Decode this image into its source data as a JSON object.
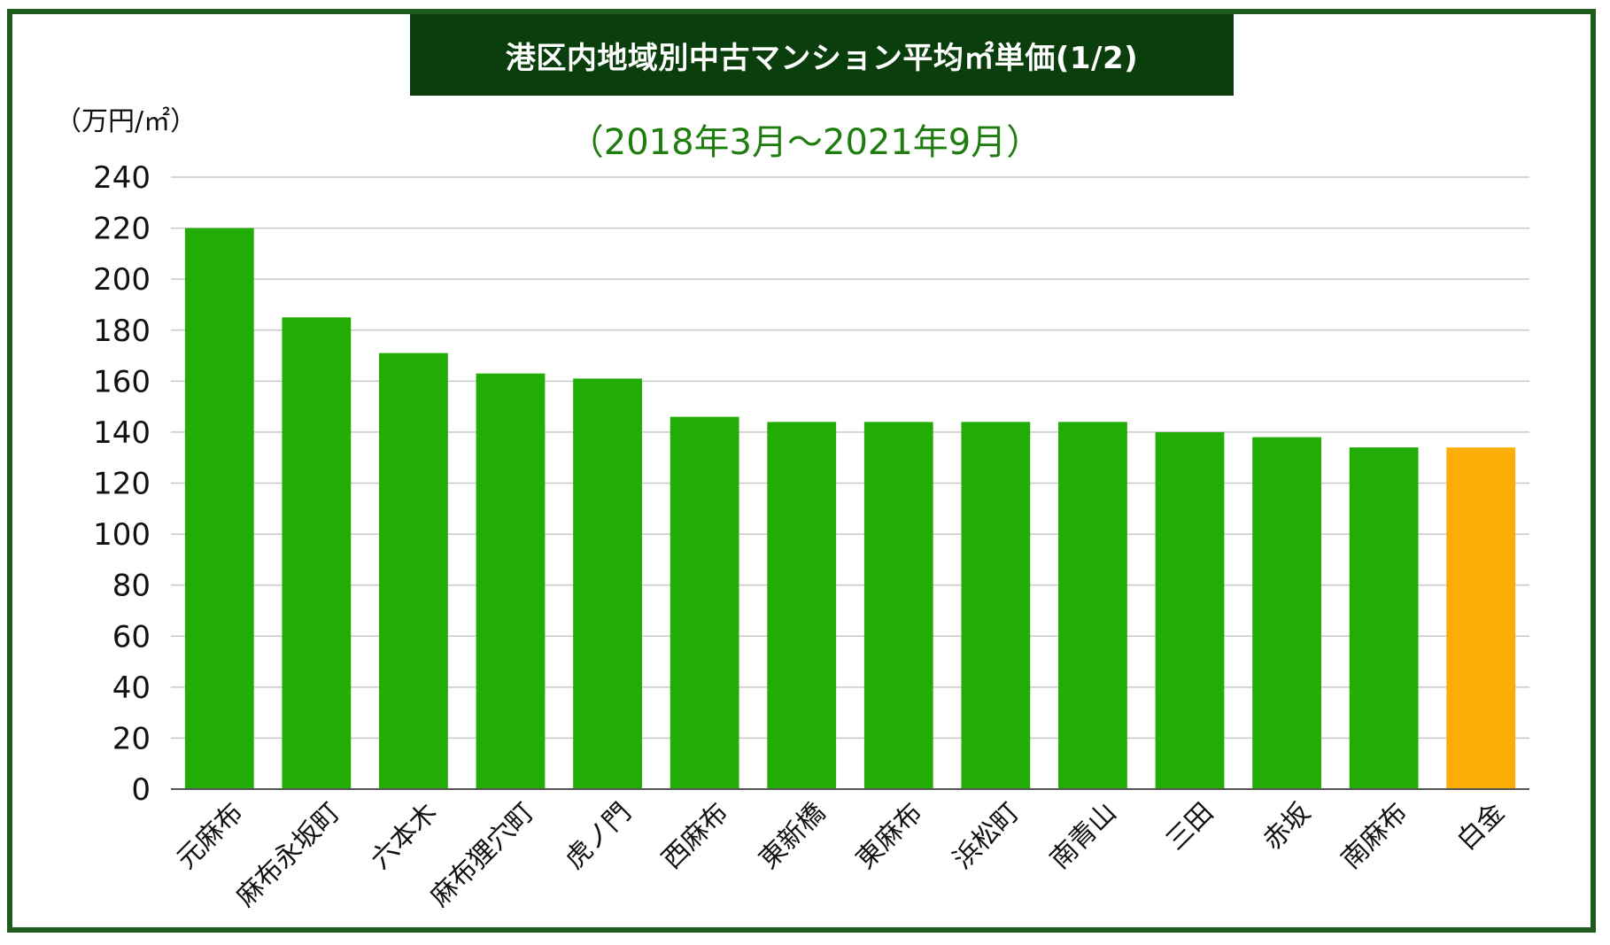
{
  "chart_data": {
    "type": "bar",
    "title": "港区内地域別中古マンション平均㎡単価(1/2)",
    "subtitle": "（2018年3月〜2021年9月）",
    "ylabel": "（万円/㎡）",
    "xlabel": "",
    "ylim": [
      0,
      240
    ],
    "yticks": [
      0,
      20,
      40,
      60,
      80,
      100,
      120,
      140,
      160,
      180,
      200,
      220,
      240
    ],
    "grid": true,
    "categories": [
      "元麻布",
      "麻布永坂町",
      "六本木",
      "麻布狸穴町",
      "虎ノ門",
      "西麻布",
      "東新橋",
      "東麻布",
      "浜松町",
      "南青山",
      "三田",
      "赤坂",
      "南麻布",
      "白金"
    ],
    "values": [
      220,
      185,
      171,
      163,
      161,
      146,
      144,
      144,
      144,
      144,
      140,
      138,
      134,
      134
    ],
    "bar_colors": [
      "#21ad05",
      "#21ad05",
      "#21ad05",
      "#21ad05",
      "#21ad05",
      "#21ad05",
      "#21ad05",
      "#21ad05",
      "#21ad05",
      "#21ad05",
      "#21ad05",
      "#21ad05",
      "#21ad05",
      "#fdae06"
    ]
  },
  "colors": {
    "frame_border": "#1f5c1c",
    "title_background": "#0a3f0d",
    "title_text": "#ffffff",
    "subtitle_text": "#1f7d0f",
    "gridline": "#c8c8c8",
    "axis": "#555555",
    "tick_text": "#111111"
  }
}
